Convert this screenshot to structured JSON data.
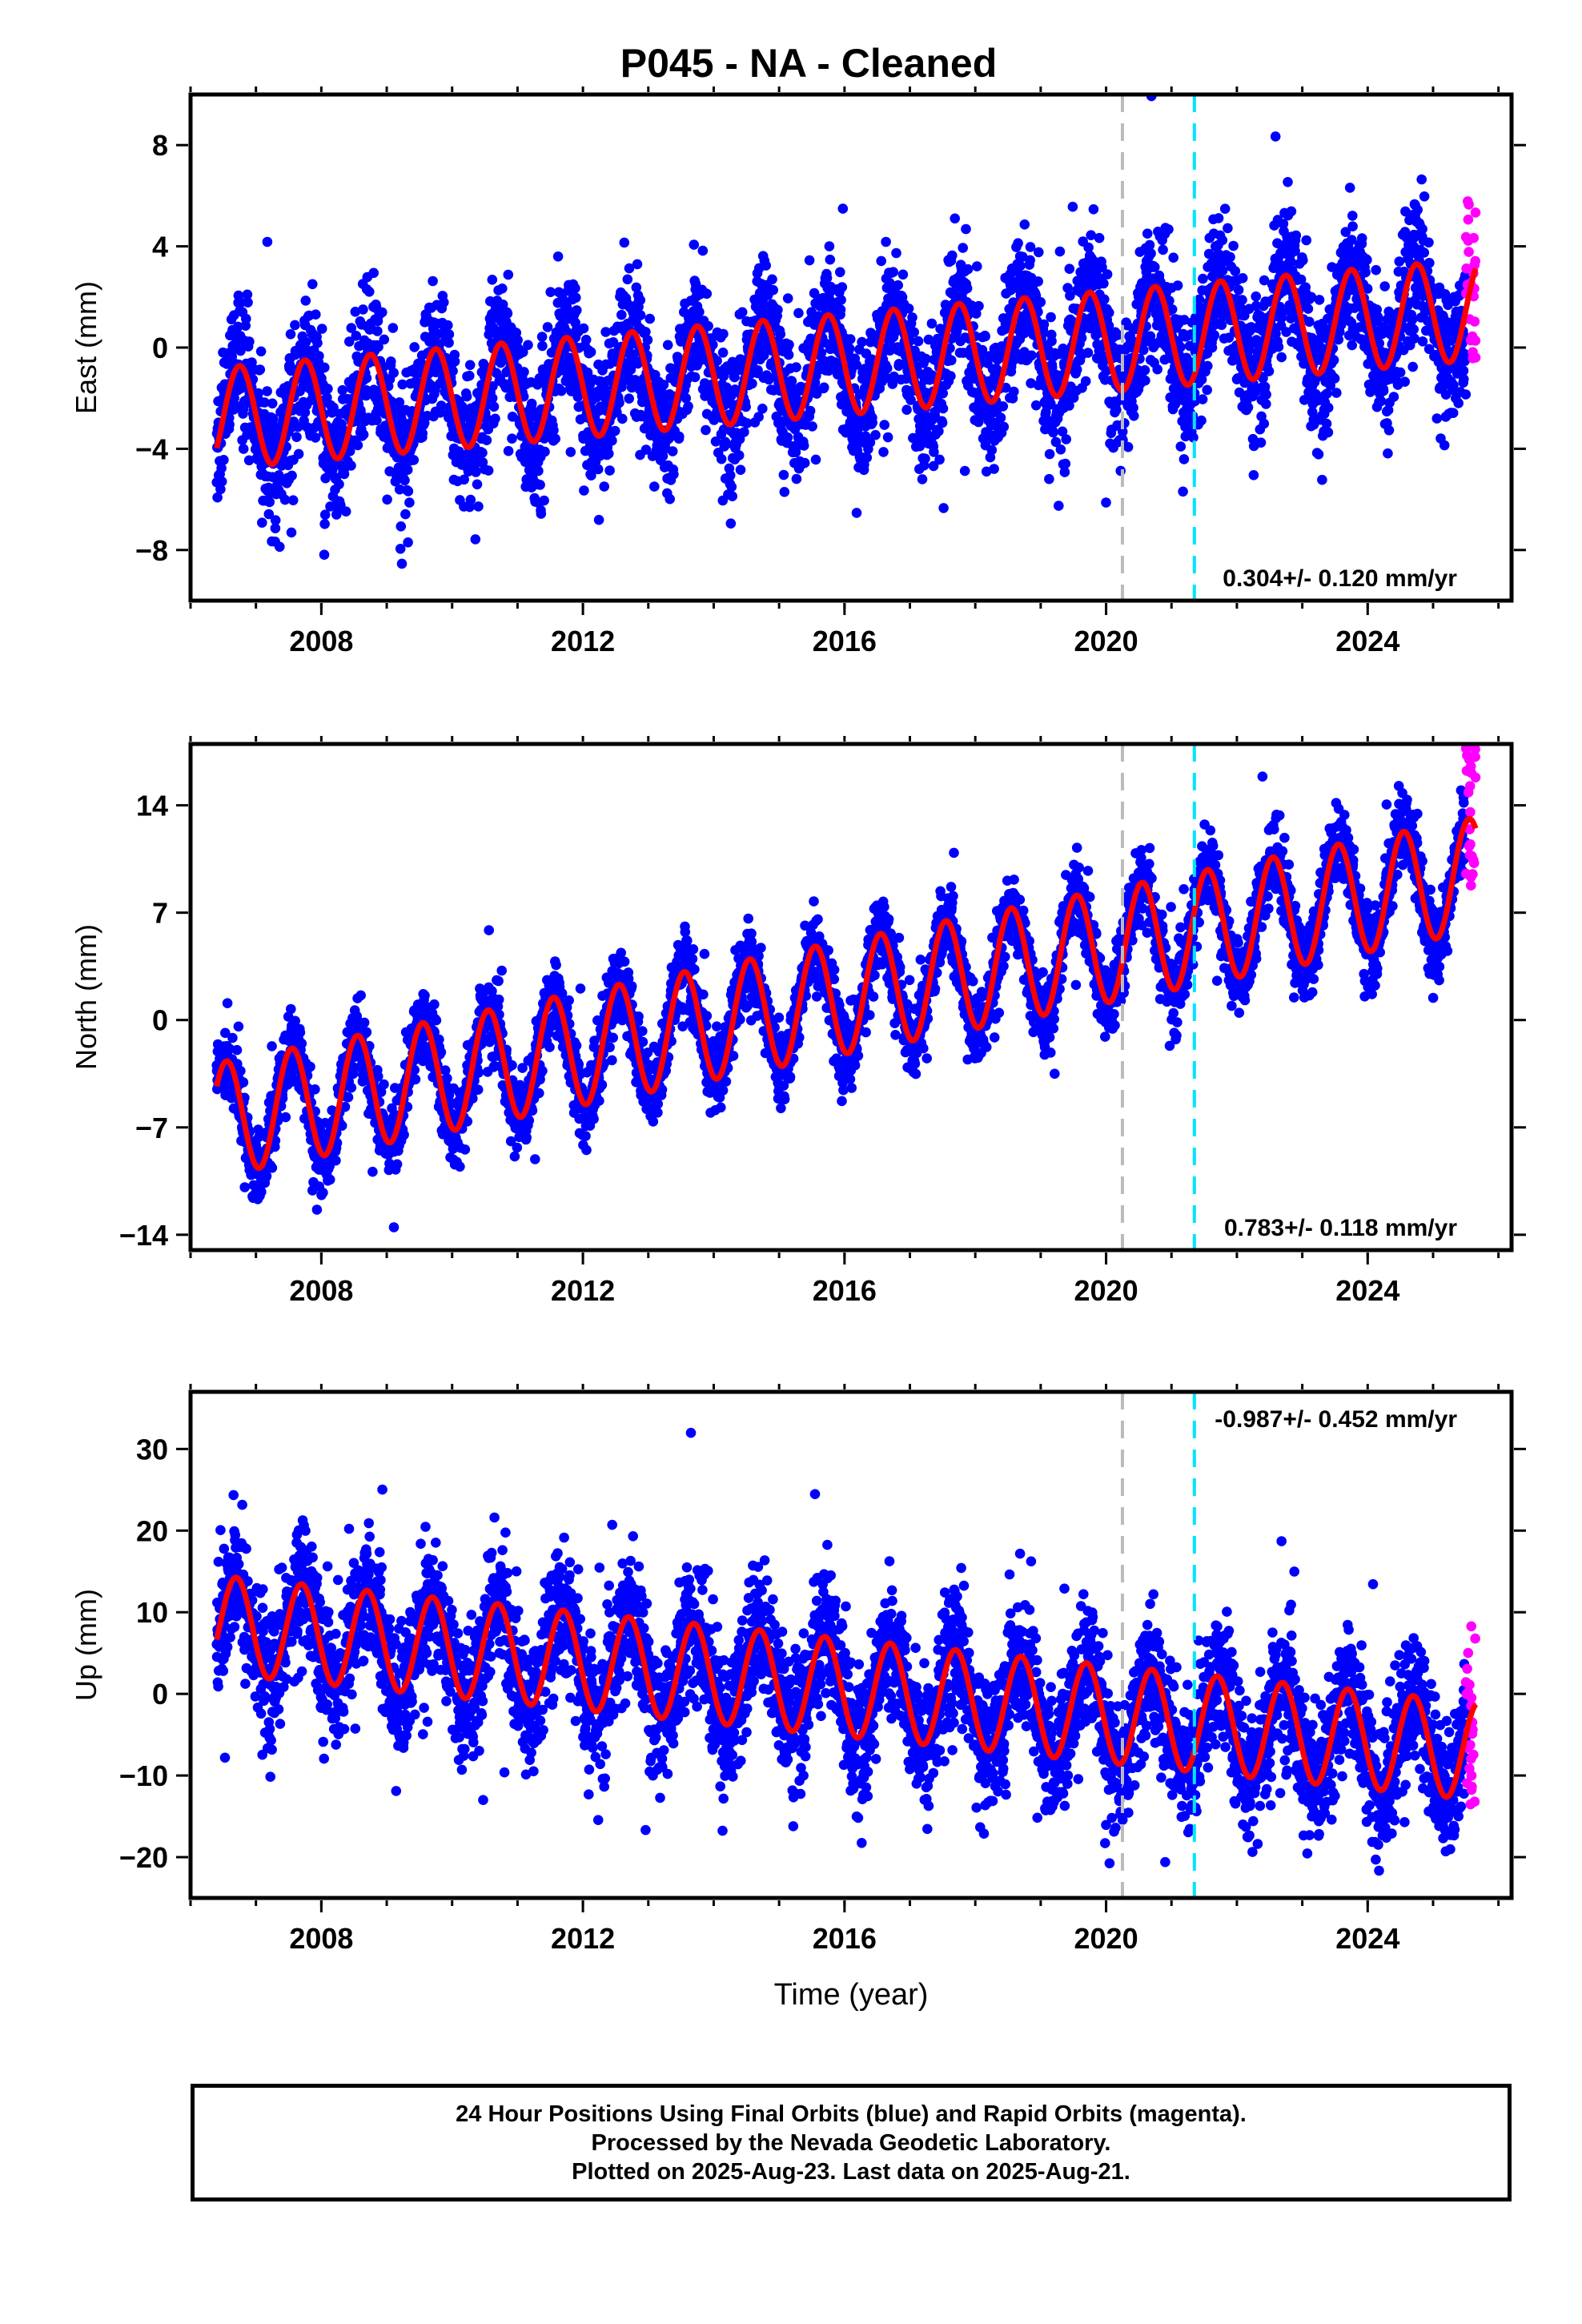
{
  "title": "P045  - NA - Cleaned",
  "footer": {
    "line1": "24 Hour Positions Using Final Orbits (blue) and Rapid Orbits (magenta).",
    "line2": "Processed by the Nevada Geodetic Laboratory.",
    "line3": "Plotted on 2025-Aug-23. Last data on 2025-Aug-21."
  },
  "colors": {
    "final_orbits": "#0000ff",
    "rapid_orbits": "#ff00ff",
    "model_fit": "#ff0000",
    "event_line_1": "#bbbbbb",
    "event_line_2": "#00e5ff"
  },
  "chart_data": [
    {
      "type": "scatter",
      "ylabel": "East (mm)",
      "xlabel": "",
      "xlim": [
        2006.0,
        2026.2
      ],
      "ylim": [
        -10,
        10
      ],
      "x_ticks": [
        2008,
        2012,
        2016,
        2020,
        2024
      ],
      "y_ticks": [
        -8,
        -4,
        0,
        4,
        8
      ],
      "rate_label": "0.304+/- 0.120 mm/yr",
      "rate_position": "bottom-right",
      "event_lines": [
        2020.25,
        2021.35
      ],
      "model": {
        "start": 2006.4,
        "end": 2025.65,
        "mean_at_start": -2.8,
        "mean_at_end": 1.5,
        "amplitude": 2.0,
        "phase_peak": 0.75,
        "rate": 0.304
      },
      "series": [
        {
          "name": "Final Orbits",
          "color": "#0000ff",
          "x_range": [
            2006.4,
            2025.5
          ],
          "spread": 1.3
        },
        {
          "name": "Rapid Orbits",
          "color": "#ff00ff",
          "x_range": [
            2025.5,
            2025.65
          ],
          "y_range": [
            -0.5,
            6.0
          ]
        }
      ]
    },
    {
      "type": "scatter",
      "ylabel": "North (mm)",
      "xlabel": "",
      "xlim": [
        2006.0,
        2026.2
      ],
      "ylim": [
        -15,
        18
      ],
      "x_ticks": [
        2008,
        2012,
        2016,
        2020,
        2024
      ],
      "y_ticks": [
        -14,
        -7,
        0,
        7,
        14
      ],
      "rate_label": "0.783+/- 0.118 mm/yr",
      "rate_position": "bottom-right",
      "event_lines": [
        2020.25,
        2021.35
      ],
      "model": {
        "start": 2006.4,
        "end": 2025.65,
        "mean_at_start": -6.5,
        "mean_at_end": 9.5,
        "amplitude": 3.7,
        "phase_peak": 0.55,
        "rate": 0.783
      },
      "series": [
        {
          "name": "Final Orbits",
          "color": "#0000ff",
          "x_range": [
            2006.4,
            2025.5
          ],
          "spread": 1.2
        },
        {
          "name": "Rapid Orbits",
          "color": "#ff00ff",
          "x_range": [
            2025.5,
            2025.65
          ],
          "y_range": [
            8.0,
            18.0
          ]
        }
      ]
    },
    {
      "type": "scatter",
      "ylabel": "Up (mm)",
      "xlabel": "Time (year)",
      "xlim": [
        2006.0,
        2026.2
      ],
      "ylim": [
        -25,
        37
      ],
      "x_ticks": [
        2008,
        2012,
        2016,
        2020,
        2024
      ],
      "y_ticks": [
        -20,
        -10,
        0,
        10,
        20,
        30
      ],
      "rate_label": "-0.987+/- 0.452 mm/yr",
      "rate_position": "top-right",
      "event_lines": [
        2020.25,
        2021.35
      ],
      "model": {
        "start": 2006.4,
        "end": 2025.65,
        "mean_at_start": 8.5,
        "mean_at_end": -7.0,
        "amplitude": 6.0,
        "phase_peak": 0.7,
        "rate": -0.987
      },
      "series": [
        {
          "name": "Final Orbits",
          "color": "#0000ff",
          "x_range": [
            2006.4,
            2025.5
          ],
          "spread": 4.0
        },
        {
          "name": "Rapid Orbits",
          "color": "#ff00ff",
          "x_range": [
            2025.5,
            2025.65
          ],
          "y_range": [
            -14.0,
            9.0
          ]
        }
      ]
    }
  ]
}
